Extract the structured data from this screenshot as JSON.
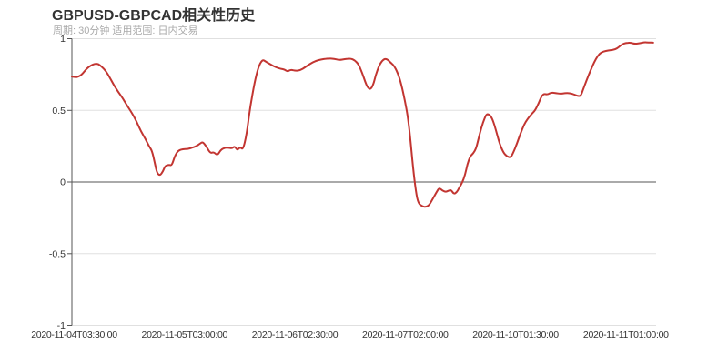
{
  "header": {
    "title": "GBPUSD-GBPCAD相关性历史",
    "subtitle": "周期: 30分钟 适用范围: 日内交易"
  },
  "chart_data": {
    "type": "line",
    "title": "GBPUSD-GBPCAD相关性历史",
    "subtitle": "周期: 30分钟 适用范围: 日内交易",
    "series_name": "GBPUSD-GBPCAD 相关性",
    "legend": "none",
    "grid": "horizontal gridlines at y ticks, dark axis line on zero",
    "ylim": [
      -1,
      1
    ],
    "y_ticks": [
      1,
      0.5,
      0,
      -0.5,
      -1
    ],
    "y_tick_labels": [
      "1",
      "0.5",
      "0",
      "-0.5",
      "-1"
    ],
    "x_tick_labels": [
      "2020-11-04T03:30:00",
      "2020-11-05T03:00:00",
      "2020-11-06T02:30:00",
      "2020-11-07T02:00:00",
      "2020-11-10T01:30:00",
      "2020-11-11T01:00:00"
    ],
    "colors": {
      "line": "#c23531",
      "grid": "#e0e0e0",
      "axis": "#555555",
      "label": "#333333",
      "subtitle": "#aaaaaa"
    },
    "points": [
      [
        0.0,
        0.735
      ],
      [
        0.006,
        0.73
      ],
      [
        0.011,
        0.735
      ],
      [
        0.017,
        0.75
      ],
      [
        0.025,
        0.79
      ],
      [
        0.033,
        0.815
      ],
      [
        0.039,
        0.825
      ],
      [
        0.045,
        0.825
      ],
      [
        0.051,
        0.805
      ],
      [
        0.058,
        0.775
      ],
      [
        0.064,
        0.735
      ],
      [
        0.072,
        0.675
      ],
      [
        0.079,
        0.63
      ],
      [
        0.087,
        0.585
      ],
      [
        0.095,
        0.53
      ],
      [
        0.103,
        0.48
      ],
      [
        0.111,
        0.42
      ],
      [
        0.118,
        0.355
      ],
      [
        0.126,
        0.3
      ],
      [
        0.132,
        0.25
      ],
      [
        0.137,
        0.22
      ],
      [
        0.142,
        0.13
      ],
      [
        0.146,
        0.06
      ],
      [
        0.151,
        0.045
      ],
      [
        0.156,
        0.075
      ],
      [
        0.16,
        0.115
      ],
      [
        0.167,
        0.12
      ],
      [
        0.171,
        0.115
      ],
      [
        0.176,
        0.18
      ],
      [
        0.182,
        0.22
      ],
      [
        0.19,
        0.23
      ],
      [
        0.198,
        0.23
      ],
      [
        0.206,
        0.24
      ],
      [
        0.213,
        0.25
      ],
      [
        0.22,
        0.27
      ],
      [
        0.224,
        0.28
      ],
      [
        0.23,
        0.25
      ],
      [
        0.237,
        0.2
      ],
      [
        0.243,
        0.21
      ],
      [
        0.249,
        0.185
      ],
      [
        0.255,
        0.225
      ],
      [
        0.262,
        0.24
      ],
      [
        0.268,
        0.24
      ],
      [
        0.274,
        0.235
      ],
      [
        0.279,
        0.25
      ],
      [
        0.283,
        0.22
      ],
      [
        0.288,
        0.245
      ],
      [
        0.293,
        0.225
      ],
      [
        0.299,
        0.33
      ],
      [
        0.305,
        0.52
      ],
      [
        0.313,
        0.7
      ],
      [
        0.319,
        0.8
      ],
      [
        0.326,
        0.855
      ],
      [
        0.332,
        0.84
      ],
      [
        0.34,
        0.82
      ],
      [
        0.349,
        0.8
      ],
      [
        0.358,
        0.79
      ],
      [
        0.364,
        0.785
      ],
      [
        0.369,
        0.77
      ],
      [
        0.375,
        0.785
      ],
      [
        0.383,
        0.775
      ],
      [
        0.391,
        0.78
      ],
      [
        0.399,
        0.8
      ],
      [
        0.408,
        0.825
      ],
      [
        0.417,
        0.845
      ],
      [
        0.427,
        0.855
      ],
      [
        0.438,
        0.862
      ],
      [
        0.449,
        0.86
      ],
      [
        0.458,
        0.85
      ],
      [
        0.467,
        0.858
      ],
      [
        0.477,
        0.862
      ],
      [
        0.484,
        0.85
      ],
      [
        0.491,
        0.82
      ],
      [
        0.497,
        0.76
      ],
      [
        0.502,
        0.7
      ],
      [
        0.506,
        0.66
      ],
      [
        0.511,
        0.645
      ],
      [
        0.516,
        0.68
      ],
      [
        0.52,
        0.745
      ],
      [
        0.526,
        0.815
      ],
      [
        0.533,
        0.855
      ],
      [
        0.539,
        0.86
      ],
      [
        0.545,
        0.835
      ],
      [
        0.551,
        0.815
      ],
      [
        0.558,
        0.76
      ],
      [
        0.564,
        0.68
      ],
      [
        0.57,
        0.57
      ],
      [
        0.575,
        0.46
      ],
      [
        0.579,
        0.32
      ],
      [
        0.584,
        0.1
      ],
      [
        0.589,
        -0.07
      ],
      [
        0.593,
        -0.15
      ],
      [
        0.6,
        -0.17
      ],
      [
        0.606,
        -0.175
      ],
      [
        0.612,
        -0.16
      ],
      [
        0.618,
        -0.115
      ],
      [
        0.625,
        -0.065
      ],
      [
        0.629,
        -0.04
      ],
      [
        0.634,
        -0.06
      ],
      [
        0.64,
        -0.07
      ],
      [
        0.645,
        -0.06
      ],
      [
        0.649,
        -0.055
      ],
      [
        0.654,
        -0.085
      ],
      [
        0.659,
        -0.07
      ],
      [
        0.663,
        -0.04
      ],
      [
        0.668,
        -0.005
      ],
      [
        0.673,
        0.05
      ],
      [
        0.677,
        0.125
      ],
      [
        0.682,
        0.18
      ],
      [
        0.687,
        0.2
      ],
      [
        0.692,
        0.235
      ],
      [
        0.696,
        0.3
      ],
      [
        0.701,
        0.38
      ],
      [
        0.706,
        0.44
      ],
      [
        0.71,
        0.475
      ],
      [
        0.715,
        0.47
      ],
      [
        0.72,
        0.44
      ],
      [
        0.726,
        0.36
      ],
      [
        0.732,
        0.27
      ],
      [
        0.738,
        0.21
      ],
      [
        0.744,
        0.18
      ],
      [
        0.751,
        0.17
      ],
      [
        0.755,
        0.2
      ],
      [
        0.762,
        0.27
      ],
      [
        0.768,
        0.34
      ],
      [
        0.774,
        0.4
      ],
      [
        0.78,
        0.44
      ],
      [
        0.787,
        0.475
      ],
      [
        0.793,
        0.5
      ],
      [
        0.799,
        0.55
      ],
      [
        0.804,
        0.6
      ],
      [
        0.808,
        0.615
      ],
      [
        0.814,
        0.61
      ],
      [
        0.821,
        0.625
      ],
      [
        0.829,
        0.62
      ],
      [
        0.836,
        0.615
      ],
      [
        0.844,
        0.62
      ],
      [
        0.852,
        0.62
      ],
      [
        0.86,
        0.61
      ],
      [
        0.866,
        0.6
      ],
      [
        0.871,
        0.6
      ],
      [
        0.875,
        0.645
      ],
      [
        0.881,
        0.71
      ],
      [
        0.888,
        0.78
      ],
      [
        0.894,
        0.835
      ],
      [
        0.9,
        0.88
      ],
      [
        0.906,
        0.905
      ],
      [
        0.914,
        0.915
      ],
      [
        0.922,
        0.92
      ],
      [
        0.93,
        0.925
      ],
      [
        0.936,
        0.94
      ],
      [
        0.942,
        0.962
      ],
      [
        0.948,
        0.97
      ],
      [
        0.956,
        0.972
      ],
      [
        0.964,
        0.963
      ],
      [
        0.972,
        0.968
      ],
      [
        0.98,
        0.975
      ],
      [
        0.987,
        0.973
      ],
      [
        0.995,
        0.972
      ]
    ]
  }
}
